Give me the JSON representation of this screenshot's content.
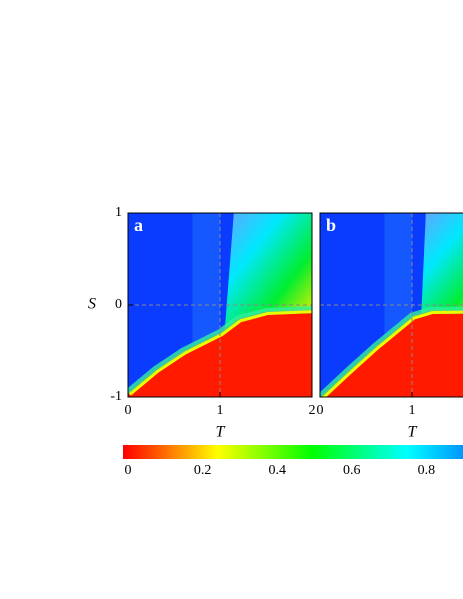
{
  "chart_data": [
    {
      "type": "heatmap",
      "panel_label": "a",
      "xlabel": "T",
      "ylabel": "S",
      "xlim": [
        0,
        2
      ],
      "ylim": [
        -1,
        1
      ],
      "xticks": [
        0,
        1,
        2
      ],
      "yticks": [
        -1,
        0,
        1
      ]
    },
    {
      "type": "heatmap",
      "panel_label": "b",
      "xlabel": "T",
      "xlim": [
        0,
        2
      ],
      "ylim": [
        -1,
        1
      ],
      "xticks": [
        0,
        1
      ]
    }
  ],
  "colorbar": {
    "lim": [
      0,
      1
    ],
    "ticks": [
      0,
      0.2,
      0.4,
      0.6,
      0.8
    ]
  }
}
